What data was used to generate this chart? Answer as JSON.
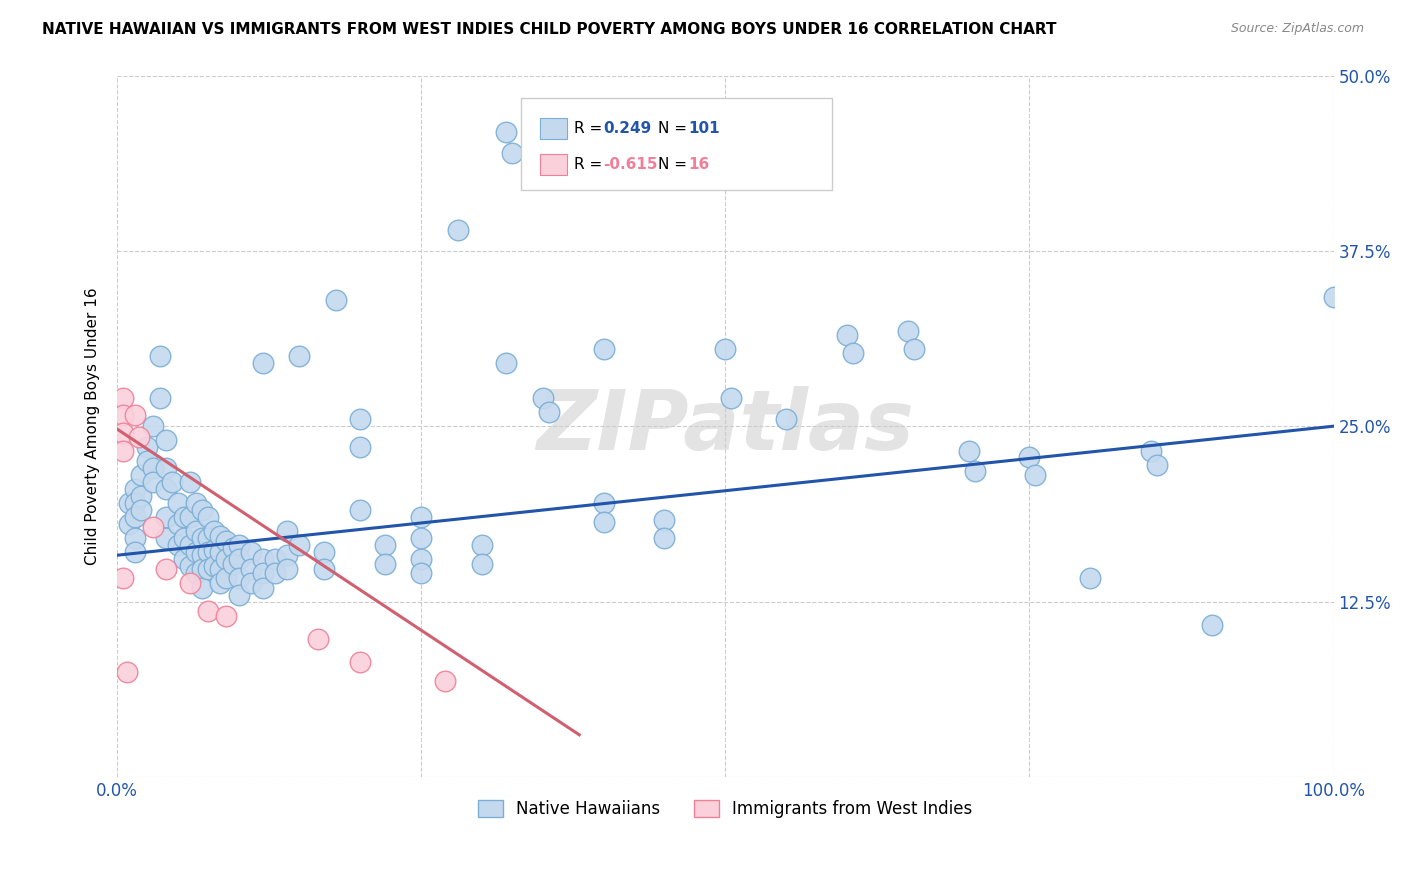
{
  "title": "NATIVE HAWAIIAN VS IMMIGRANTS FROM WEST INDIES CHILD POVERTY AMONG BOYS UNDER 16 CORRELATION CHART",
  "source": "Source: ZipAtlas.com",
  "ylabel": "Child Poverty Among Boys Under 16",
  "xlim": [
    0,
    1.0
  ],
  "ylim": [
    0,
    0.5
  ],
  "xticks": [
    0.0,
    0.25,
    0.5,
    0.75,
    1.0
  ],
  "xticklabels": [
    "0.0%",
    "",
    "",
    "",
    "100.0%"
  ],
  "yticks": [
    0.0,
    0.125,
    0.25,
    0.375,
    0.5
  ],
  "yticklabels": [
    "",
    "12.5%",
    "25.0%",
    "37.5%",
    "50.0%"
  ],
  "blue_color": "#c5d9ee",
  "blue_edge_color": "#7aaed6",
  "pink_color": "#fad0db",
  "pink_edge_color": "#f08098",
  "blue_line_color": "#2255aa",
  "pink_line_color": "#d06070",
  "watermark": "ZIPatlas",
  "blue_points": [
    [
      0.01,
      0.195
    ],
    [
      0.01,
      0.18
    ],
    [
      0.015,
      0.205
    ],
    [
      0.015,
      0.195
    ],
    [
      0.015,
      0.185
    ],
    [
      0.015,
      0.17
    ],
    [
      0.015,
      0.16
    ],
    [
      0.02,
      0.215
    ],
    [
      0.02,
      0.2
    ],
    [
      0.02,
      0.19
    ],
    [
      0.025,
      0.235
    ],
    [
      0.025,
      0.225
    ],
    [
      0.03,
      0.25
    ],
    [
      0.03,
      0.22
    ],
    [
      0.03,
      0.21
    ],
    [
      0.035,
      0.3
    ],
    [
      0.035,
      0.27
    ],
    [
      0.04,
      0.24
    ],
    [
      0.04,
      0.22
    ],
    [
      0.04,
      0.205
    ],
    [
      0.04,
      0.185
    ],
    [
      0.04,
      0.17
    ],
    [
      0.045,
      0.21
    ],
    [
      0.05,
      0.195
    ],
    [
      0.05,
      0.18
    ],
    [
      0.05,
      0.165
    ],
    [
      0.055,
      0.185
    ],
    [
      0.055,
      0.17
    ],
    [
      0.055,
      0.155
    ],
    [
      0.06,
      0.21
    ],
    [
      0.06,
      0.185
    ],
    [
      0.06,
      0.165
    ],
    [
      0.06,
      0.15
    ],
    [
      0.065,
      0.195
    ],
    [
      0.065,
      0.175
    ],
    [
      0.065,
      0.16
    ],
    [
      0.065,
      0.145
    ],
    [
      0.07,
      0.19
    ],
    [
      0.07,
      0.17
    ],
    [
      0.07,
      0.158
    ],
    [
      0.07,
      0.148
    ],
    [
      0.07,
      0.135
    ],
    [
      0.075,
      0.185
    ],
    [
      0.075,
      0.17
    ],
    [
      0.075,
      0.16
    ],
    [
      0.075,
      0.148
    ],
    [
      0.08,
      0.175
    ],
    [
      0.08,
      0.162
    ],
    [
      0.08,
      0.15
    ],
    [
      0.085,
      0.172
    ],
    [
      0.085,
      0.16
    ],
    [
      0.085,
      0.148
    ],
    [
      0.085,
      0.138
    ],
    [
      0.09,
      0.168
    ],
    [
      0.09,
      0.155
    ],
    [
      0.09,
      0.142
    ],
    [
      0.095,
      0.163
    ],
    [
      0.095,
      0.152
    ],
    [
      0.1,
      0.165
    ],
    [
      0.1,
      0.155
    ],
    [
      0.1,
      0.142
    ],
    [
      0.1,
      0.13
    ],
    [
      0.11,
      0.16
    ],
    [
      0.11,
      0.148
    ],
    [
      0.11,
      0.138
    ],
    [
      0.12,
      0.295
    ],
    [
      0.12,
      0.155
    ],
    [
      0.12,
      0.145
    ],
    [
      0.12,
      0.135
    ],
    [
      0.13,
      0.155
    ],
    [
      0.13,
      0.145
    ],
    [
      0.14,
      0.175
    ],
    [
      0.14,
      0.158
    ],
    [
      0.14,
      0.148
    ],
    [
      0.15,
      0.165
    ],
    [
      0.15,
      0.3
    ],
    [
      0.17,
      0.16
    ],
    [
      0.17,
      0.148
    ],
    [
      0.18,
      0.34
    ],
    [
      0.2,
      0.255
    ],
    [
      0.2,
      0.235
    ],
    [
      0.2,
      0.19
    ],
    [
      0.22,
      0.165
    ],
    [
      0.22,
      0.152
    ],
    [
      0.25,
      0.185
    ],
    [
      0.25,
      0.17
    ],
    [
      0.25,
      0.155
    ],
    [
      0.25,
      0.145
    ],
    [
      0.28,
      0.39
    ],
    [
      0.3,
      0.165
    ],
    [
      0.3,
      0.152
    ],
    [
      0.32,
      0.46
    ],
    [
      0.325,
      0.445
    ],
    [
      0.32,
      0.295
    ],
    [
      0.35,
      0.27
    ],
    [
      0.355,
      0.26
    ],
    [
      0.4,
      0.305
    ],
    [
      0.4,
      0.195
    ],
    [
      0.4,
      0.182
    ],
    [
      0.45,
      0.183
    ],
    [
      0.45,
      0.17
    ],
    [
      0.5,
      0.305
    ],
    [
      0.505,
      0.27
    ],
    [
      0.55,
      0.255
    ],
    [
      0.6,
      0.315
    ],
    [
      0.605,
      0.302
    ],
    [
      0.65,
      0.318
    ],
    [
      0.655,
      0.305
    ],
    [
      0.7,
      0.232
    ],
    [
      0.705,
      0.218
    ],
    [
      0.75,
      0.228
    ],
    [
      0.755,
      0.215
    ],
    [
      0.8,
      0.142
    ],
    [
      0.85,
      0.232
    ],
    [
      0.855,
      0.222
    ],
    [
      0.9,
      0.108
    ],
    [
      1.0,
      0.342
    ]
  ],
  "pink_points": [
    [
      0.005,
      0.27
    ],
    [
      0.005,
      0.258
    ],
    [
      0.005,
      0.245
    ],
    [
      0.005,
      0.232
    ],
    [
      0.005,
      0.142
    ],
    [
      0.008,
      0.075
    ],
    [
      0.015,
      0.258
    ],
    [
      0.018,
      0.242
    ],
    [
      0.03,
      0.178
    ],
    [
      0.04,
      0.148
    ],
    [
      0.06,
      0.138
    ],
    [
      0.075,
      0.118
    ],
    [
      0.09,
      0.115
    ],
    [
      0.165,
      0.098
    ],
    [
      0.2,
      0.082
    ],
    [
      0.27,
      0.068
    ]
  ],
  "blue_trend_x": [
    0.0,
    1.0
  ],
  "blue_trend_y": [
    0.158,
    0.25
  ],
  "pink_trend_x": [
    0.0,
    0.38
  ],
  "pink_trend_y": [
    0.248,
    0.03
  ]
}
